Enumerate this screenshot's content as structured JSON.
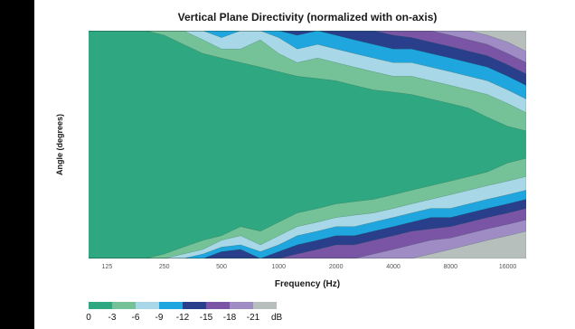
{
  "chart_data": {
    "type": "heatmap",
    "title": "Vertical Plane Directivity (normalized with on-axis)",
    "xlabel": "Frequency (Hz)",
    "ylabel": "Angle (degrees)",
    "x_scale": "log",
    "x_ticks": [
      "125",
      "250",
      "500",
      "1000",
      "2000",
      "4000",
      "8000",
      "16000"
    ],
    "x_tick_values": [
      125,
      250,
      500,
      1000,
      2000,
      4000,
      8000,
      16000
    ],
    "xlim": [
      100,
      20000
    ],
    "legend": {
      "levels": [
        "0",
        "-3",
        "-6",
        "-9",
        "-12",
        "-15",
        "-18",
        "-21"
      ],
      "unit": "dB",
      "colors": [
        "#2fa882",
        "#76c298",
        "#a8d8e8",
        "#20a6df",
        "#2a3f8c",
        "#7a55a6",
        "#a08cc4",
        "#b7bfbd"
      ]
    },
    "contours_top": [
      {
        "level": "-3",
        "x": [
          100,
          125,
          160,
          200,
          250,
          315,
          400,
          500,
          630,
          800,
          1000,
          1250,
          1600,
          2000,
          2500,
          3150,
          4000,
          5000,
          6300,
          8000,
          10000,
          12500,
          16000,
          20000
        ],
        "y": [
          0,
          0,
          0,
          0,
          2,
          6,
          10,
          12,
          14,
          16,
          18,
          20,
          21,
          22,
          24,
          26,
          27,
          28,
          30,
          32,
          34,
          38,
          42,
          44
        ]
      },
      {
        "level": "-6",
        "x": [
          100,
          125,
          160,
          200,
          250,
          315,
          400,
          500,
          630,
          800,
          1000,
          1250,
          1600,
          2000,
          2500,
          3150,
          4000,
          5000,
          6300,
          8000,
          10000,
          12500,
          16000,
          20000
        ],
        "y": [
          0,
          0,
          0,
          0,
          0,
          0,
          4,
          8,
          8,
          4,
          10,
          14,
          12,
          14,
          16,
          18,
          20,
          20,
          22,
          24,
          26,
          28,
          32,
          36
        ]
      },
      {
        "level": "-9",
        "x": [
          100,
          125,
          160,
          200,
          250,
          315,
          400,
          500,
          630,
          800,
          1000,
          1250,
          1600,
          2000,
          2500,
          3150,
          4000,
          5000,
          6300,
          8000,
          10000,
          12500,
          16000,
          20000
        ],
        "y": [
          0,
          0,
          0,
          0,
          0,
          0,
          0,
          3,
          0,
          0,
          3,
          8,
          6,
          8,
          10,
          12,
          14,
          14,
          16,
          18,
          20,
          22,
          26,
          30
        ]
      },
      {
        "level": "-12",
        "x": [
          100,
          125,
          160,
          200,
          250,
          315,
          400,
          500,
          630,
          800,
          1000,
          1250,
          1600,
          2000,
          2500,
          3150,
          4000,
          5000,
          6300,
          8000,
          10000,
          12500,
          16000,
          20000
        ],
        "y": [
          0,
          0,
          0,
          0,
          0,
          0,
          0,
          0,
          0,
          0,
          0,
          2,
          0,
          2,
          4,
          6,
          8,
          8,
          10,
          12,
          14,
          16,
          20,
          24
        ]
      },
      {
        "level": "-15",
        "x": [
          100,
          125,
          160,
          200,
          250,
          315,
          400,
          500,
          630,
          800,
          1000,
          1250,
          1600,
          2000,
          2500,
          3150,
          4000,
          5000,
          6300,
          8000,
          10000,
          12500,
          16000,
          20000
        ],
        "y": [
          0,
          0,
          0,
          0,
          0,
          0,
          0,
          0,
          0,
          0,
          0,
          0,
          0,
          0,
          0,
          0,
          2,
          3,
          5,
          7,
          9,
          11,
          15,
          19
        ]
      },
      {
        "level": "-18",
        "x": [
          100,
          125,
          160,
          200,
          250,
          315,
          400,
          500,
          630,
          800,
          1000,
          1250,
          1600,
          2000,
          2500,
          3150,
          4000,
          5000,
          6300,
          8000,
          10000,
          12500,
          16000,
          20000
        ],
        "y": [
          0,
          0,
          0,
          0,
          0,
          0,
          0,
          0,
          0,
          0,
          0,
          0,
          0,
          0,
          0,
          0,
          0,
          0,
          0,
          2,
          4,
          6,
          10,
          14
        ]
      },
      {
        "level": "-21",
        "x": [
          100,
          125,
          160,
          200,
          250,
          315,
          400,
          500,
          630,
          800,
          1000,
          1250,
          1600,
          2000,
          2500,
          3150,
          4000,
          5000,
          6300,
          8000,
          10000,
          12500,
          16000,
          20000
        ],
        "y": [
          0,
          0,
          0,
          0,
          0,
          0,
          0,
          0,
          0,
          0,
          0,
          0,
          0,
          0,
          0,
          0,
          0,
          0,
          0,
          0,
          0,
          2,
          5,
          9
        ]
      }
    ],
    "contours_bottom": [
      {
        "level": "-3",
        "x": [
          100,
          125,
          160,
          200,
          250,
          315,
          400,
          500,
          630,
          800,
          1000,
          1250,
          1600,
          2000,
          2500,
          3150,
          4000,
          5000,
          6300,
          8000,
          10000,
          12500,
          16000,
          20000
        ],
        "y": [
          0,
          0,
          0,
          0,
          2,
          5,
          8,
          10,
          14,
          12,
          16,
          20,
          22,
          24,
          25,
          26,
          28,
          30,
          32,
          34,
          36,
          38,
          42,
          44
        ]
      },
      {
        "level": "-6",
        "x": [
          100,
          125,
          160,
          200,
          250,
          315,
          400,
          500,
          630,
          800,
          1000,
          1250,
          1600,
          2000,
          2500,
          3150,
          4000,
          5000,
          6300,
          8000,
          10000,
          12500,
          16000,
          20000
        ],
        "y": [
          0,
          0,
          0,
          0,
          0,
          2,
          4,
          8,
          10,
          6,
          10,
          14,
          16,
          18,
          19,
          20,
          22,
          24,
          26,
          28,
          30,
          32,
          34,
          36
        ]
      },
      {
        "level": "-9",
        "x": [
          100,
          125,
          160,
          200,
          250,
          315,
          400,
          500,
          630,
          800,
          1000,
          1250,
          1600,
          2000,
          2500,
          3150,
          4000,
          5000,
          6300,
          8000,
          10000,
          12500,
          16000,
          20000
        ],
        "y": [
          0,
          0,
          0,
          0,
          0,
          0,
          2,
          5,
          6,
          3,
          6,
          10,
          12,
          14,
          14,
          16,
          18,
          20,
          22,
          22,
          24,
          26,
          28,
          30
        ]
      },
      {
        "level": "-12",
        "x": [
          100,
          125,
          160,
          200,
          250,
          315,
          400,
          500,
          630,
          800,
          1000,
          1250,
          1600,
          2000,
          2500,
          3150,
          4000,
          5000,
          6300,
          8000,
          10000,
          12500,
          16000,
          20000
        ],
        "y": [
          0,
          0,
          0,
          0,
          0,
          0,
          0,
          3,
          4,
          0,
          3,
          6,
          8,
          10,
          10,
          12,
          14,
          16,
          18,
          18,
          20,
          22,
          24,
          26
        ]
      },
      {
        "level": "-15",
        "x": [
          100,
          125,
          160,
          200,
          250,
          315,
          400,
          500,
          630,
          800,
          1000,
          1250,
          1600,
          2000,
          2500,
          3150,
          4000,
          5000,
          6300,
          8000,
          10000,
          12500,
          16000,
          20000
        ],
        "y": [
          0,
          0,
          0,
          0,
          0,
          0,
          0,
          0,
          0,
          0,
          0,
          2,
          4,
          6,
          6,
          8,
          10,
          12,
          13,
          14,
          16,
          18,
          20,
          22
        ]
      },
      {
        "level": "-18",
        "x": [
          100,
          125,
          160,
          200,
          250,
          315,
          400,
          500,
          630,
          800,
          1000,
          1250,
          1600,
          2000,
          2500,
          3150,
          4000,
          5000,
          6300,
          8000,
          10000,
          12500,
          16000,
          20000
        ],
        "y": [
          0,
          0,
          0,
          0,
          0,
          0,
          0,
          0,
          0,
          0,
          0,
          0,
          0,
          0,
          0,
          2,
          4,
          6,
          8,
          9,
          11,
          13,
          15,
          17
        ]
      },
      {
        "level": "-21",
        "x": [
          100,
          125,
          160,
          200,
          250,
          315,
          400,
          500,
          630,
          800,
          1000,
          1250,
          1600,
          2000,
          2500,
          3150,
          4000,
          5000,
          6300,
          8000,
          10000,
          12500,
          16000,
          20000
        ],
        "y": [
          0,
          0,
          0,
          0,
          0,
          0,
          0,
          0,
          0,
          0,
          0,
          0,
          0,
          0,
          0,
          0,
          0,
          0,
          2,
          4,
          6,
          8,
          10,
          12
        ]
      }
    ]
  }
}
